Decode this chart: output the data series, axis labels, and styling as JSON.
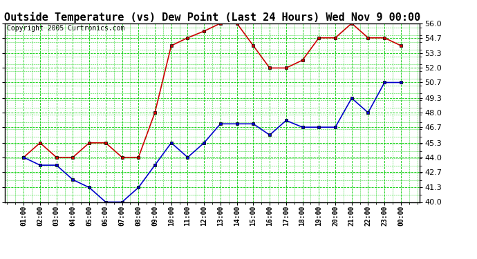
{
  "title": "Outside Temperature (vs) Dew Point (Last 24 Hours) Wed Nov 9 00:00",
  "copyright": "Copyright 2005 Curtronics.com",
  "x_labels": [
    "01:00",
    "02:00",
    "03:00",
    "04:00",
    "05:00",
    "06:00",
    "07:00",
    "08:00",
    "09:00",
    "10:00",
    "11:00",
    "12:00",
    "13:00",
    "14:00",
    "15:00",
    "16:00",
    "17:00",
    "18:00",
    "19:00",
    "20:00",
    "21:00",
    "22:00",
    "23:00",
    "00:00"
  ],
  "temp_values": [
    44.0,
    45.3,
    44.0,
    44.0,
    45.3,
    45.3,
    44.0,
    44.0,
    48.0,
    54.0,
    54.7,
    55.3,
    56.0,
    56.0,
    54.0,
    52.0,
    52.0,
    52.7,
    54.7,
    54.7,
    56.0,
    54.7,
    54.7,
    54.0
  ],
  "dew_values": [
    44.0,
    43.3,
    43.3,
    42.0,
    41.3,
    40.0,
    40.0,
    41.3,
    43.3,
    45.3,
    44.0,
    45.3,
    47.0,
    47.0,
    47.0,
    46.0,
    47.3,
    46.7,
    46.7,
    46.7,
    49.3,
    48.0,
    50.7,
    50.7
  ],
  "temp_color": "#cc0000",
  "dew_color": "#0000cc",
  "bg_color": "#ffffff",
  "plot_bg_color": "#ffffff",
  "grid_color": "#00cc00",
  "ylim": [
    40.0,
    56.0
  ],
  "yticks": [
    40.0,
    41.3,
    42.7,
    44.0,
    45.3,
    46.7,
    48.0,
    49.3,
    50.7,
    52.0,
    53.3,
    54.7,
    56.0
  ],
  "title_fontsize": 11,
  "copyright_fontsize": 7
}
